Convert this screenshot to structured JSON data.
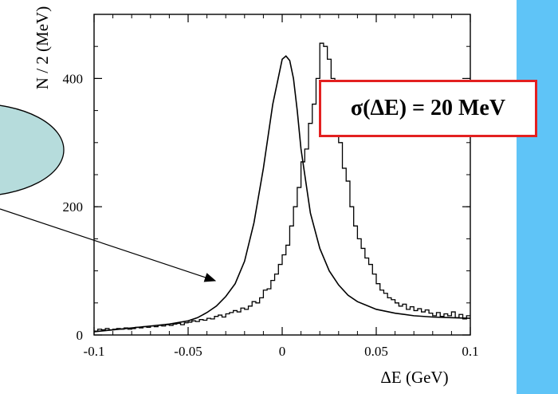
{
  "chart_data": {
    "type": "line",
    "title": "",
    "xlabel": "ΔE (GeV)",
    "ylabel": "N / 2 (MeV)",
    "xlim": [
      -0.1,
      0.1
    ],
    "ylim": [
      0,
      500
    ],
    "xticks": [
      {
        "value": -0.1,
        "label": "-0.1"
      },
      {
        "value": -0.05,
        "label": "-0.05"
      },
      {
        "value": 0,
        "label": "0"
      },
      {
        "value": 0.05,
        "label": "0.05"
      },
      {
        "value": 0.1,
        "label": "0.1"
      }
    ],
    "yticks": [
      {
        "value": 0,
        "label": "0"
      },
      {
        "value": 200,
        "label": "200"
      },
      {
        "value": 400,
        "label": "400"
      }
    ],
    "grid": false,
    "series": [
      {
        "kind": "histogram",
        "bin_width": 0.002,
        "bin_start": -0.1,
        "values": [
          6,
          9,
          8,
          10,
          8,
          9,
          10,
          9,
          11,
          9,
          10,
          12,
          11,
          13,
          12,
          14,
          13,
          15,
          14,
          16,
          15,
          17,
          18,
          16,
          19,
          20,
          22,
          21,
          24,
          23,
          26,
          25,
          29,
          31,
          28,
          33,
          35,
          38,
          36,
          42,
          40,
          45,
          52,
          50,
          58,
          70,
          72,
          85,
          95,
          110,
          125,
          140,
          170,
          200,
          230,
          270,
          290,
          330,
          360,
          400,
          455,
          450,
          430,
          400,
          340,
          300,
          260,
          240,
          200,
          170,
          150,
          135,
          120,
          110,
          95,
          80,
          70,
          65,
          58,
          55,
          50,
          45,
          48,
          40,
          44,
          38,
          41,
          36,
          39,
          34,
          30,
          35,
          29,
          33,
          30,
          36,
          27,
          32,
          25,
          30
        ]
      },
      {
        "kind": "fit",
        "x": [
          -0.1,
          -0.09,
          -0.08,
          -0.07,
          -0.06,
          -0.05,
          -0.045,
          -0.04,
          -0.035,
          -0.03,
          -0.025,
          -0.02,
          -0.015,
          -0.01,
          -0.005,
          0,
          0.002,
          0.004,
          0.006,
          0.008,
          0.01,
          0.015,
          0.02,
          0.025,
          0.03,
          0.035,
          0.04,
          0.05,
          0.06,
          0.07,
          0.08,
          0.09,
          0.1
        ],
        "y": [
          5,
          8,
          11,
          14,
          17,
          22,
          27,
          35,
          45,
          60,
          80,
          115,
          175,
          260,
          360,
          430,
          435,
          428,
          400,
          350,
          290,
          190,
          135,
          100,
          78,
          62,
          52,
          40,
          34,
          30,
          28,
          27,
          26
        ]
      }
    ],
    "annotation": "σ(ΔE) = 20 MeV",
    "colors": {
      "frame": "#000000",
      "box_border": "#e32020",
      "background": "#5fc4f7",
      "bubble": "#b6dcdc"
    }
  }
}
